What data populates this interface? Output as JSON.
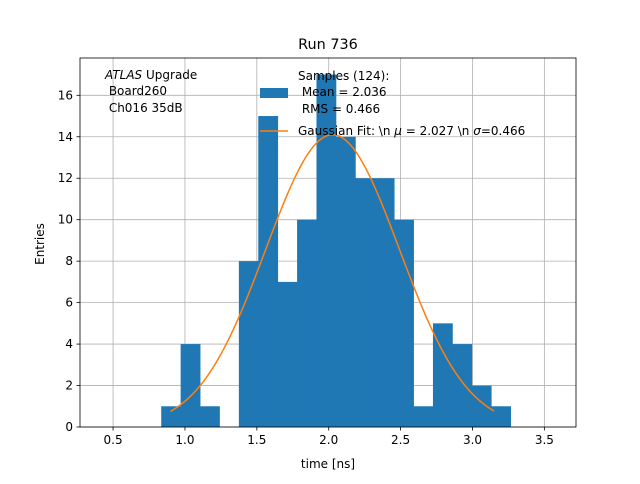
{
  "chart_data": {
    "type": "bar",
    "title": "Run 736",
    "xlabel": "time [ns]",
    "ylabel": "Entries",
    "xlim": [
      0.27,
      3.72
    ],
    "ylim": [
      0,
      17.8
    ],
    "xticks": [
      0.5,
      1.0,
      1.5,
      2.0,
      2.5,
      3.0,
      3.5
    ],
    "xtick_labels": [
      "0.5",
      "1.0",
      "1.5",
      "2.0",
      "2.5",
      "3.0",
      "3.5"
    ],
    "yticks": [
      0,
      2,
      4,
      6,
      8,
      10,
      12,
      14,
      16
    ],
    "ytick_labels": [
      "0",
      "2",
      "4",
      "6",
      "8",
      "10",
      "12",
      "14",
      "16"
    ],
    "grid": true,
    "legend_position": "top-right",
    "annotation": {
      "atlas": "ATLAS",
      "upgrade": " Upgrade",
      "line2": " Board260",
      "line3": " Ch016 35dB"
    },
    "histogram": {
      "name_lines": [
        "Samples (124):",
        " Mean = 2.036",
        " RMS = 0.466"
      ],
      "color": "#1f77b4",
      "bins": [
        {
          "x0": 0.835,
          "x1": 0.97,
          "count": 1
        },
        {
          "x0": 0.97,
          "x1": 1.105,
          "count": 4
        },
        {
          "x0": 1.105,
          "x1": 1.24,
          "count": 1
        },
        {
          "x0": 1.24,
          "x1": 1.375,
          "count": 0
        },
        {
          "x0": 1.375,
          "x1": 1.51,
          "count": 8
        },
        {
          "x0": 1.51,
          "x1": 1.645,
          "count": 15
        },
        {
          "x0": 1.645,
          "x1": 1.78,
          "count": 7
        },
        {
          "x0": 1.78,
          "x1": 1.915,
          "count": 10
        },
        {
          "x0": 1.915,
          "x1": 2.05,
          "count": 17
        },
        {
          "x0": 2.05,
          "x1": 2.185,
          "count": 14
        },
        {
          "x0": 2.185,
          "x1": 2.32,
          "count": 12
        },
        {
          "x0": 2.32,
          "x1": 2.455,
          "count": 12
        },
        {
          "x0": 2.455,
          "x1": 2.59,
          "count": 10
        },
        {
          "x0": 2.59,
          "x1": 2.725,
          "count": 1
        },
        {
          "x0": 2.725,
          "x1": 2.86,
          "count": 5
        },
        {
          "x0": 2.86,
          "x1": 2.995,
          "count": 4
        },
        {
          "x0": 2.995,
          "x1": 3.13,
          "count": 2
        },
        {
          "x0": 3.13,
          "x1": 3.265,
          "count": 1
        }
      ]
    },
    "fit": {
      "name": "Gaussian Fit: \\n $\\mu$ = 2.027 \\n $\\sigma$=0.466",
      "label_prefix": "Gaussian Fit: \\n ",
      "mu_symbol": "μ",
      "label_mid": " = 2.027 \\n ",
      "sigma_symbol": "σ",
      "label_suffix": "=0.466",
      "color": "#ff7f0e",
      "mu": 2.027,
      "sigma": 0.466,
      "amplitude": 14.1,
      "x_range": [
        0.9,
        3.15
      ]
    }
  }
}
